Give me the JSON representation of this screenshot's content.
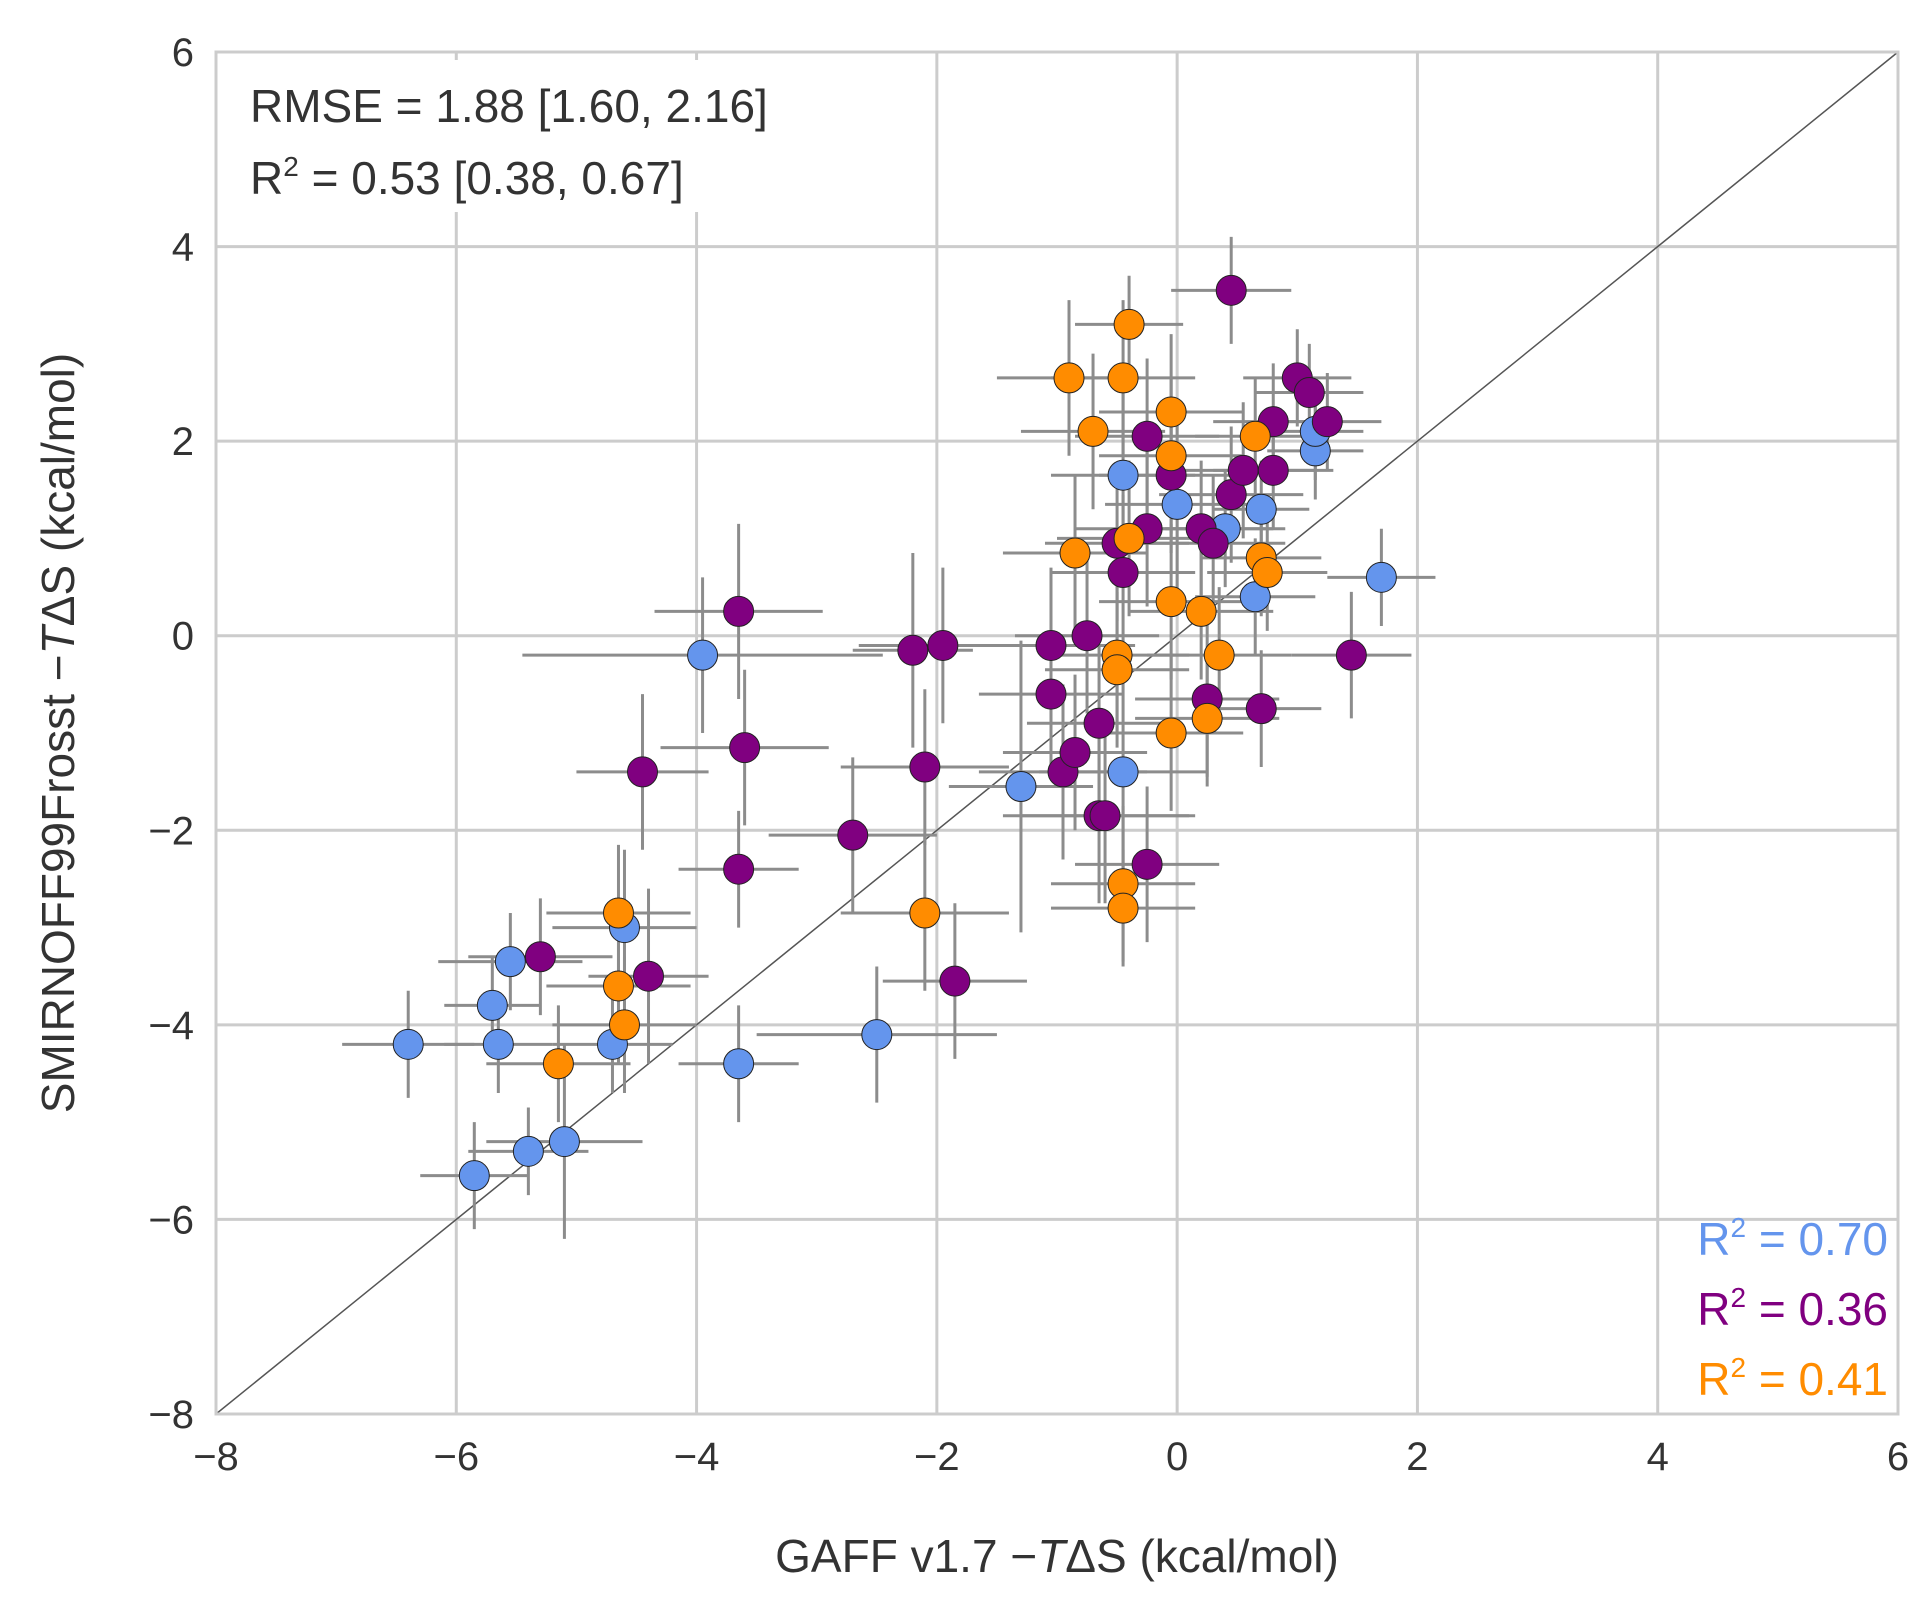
{
  "chart_data": {
    "type": "scatter",
    "xlabel_prefix": "GAFF v1.7 −",
    "xlabel_italic": "T",
    "xlabel_suffix": "ΔS (kcal/mol)",
    "ylabel_prefix": "SMIRNOFF99Frosst −",
    "ylabel_italic": "T",
    "ylabel_suffix": "ΔS (kcal/mol)",
    "xlim": [
      -8,
      6
    ],
    "ylim": [
      -8,
      6
    ],
    "x_ticks": [
      -8,
      -6,
      -4,
      -2,
      0,
      2,
      4,
      6
    ],
    "y_ticks": [
      -8,
      -6,
      -4,
      -2,
      0,
      2,
      4,
      6
    ],
    "x_tick_labels": [
      "−8",
      "−6",
      "−4",
      "−2",
      "0",
      "2",
      "4",
      "6"
    ],
    "y_tick_labels": [
      "−8",
      "−6",
      "−4",
      "−2",
      "0",
      "2",
      "4",
      "6"
    ],
    "grid": true,
    "identity_line": true,
    "stats": {
      "rmse": "RMSE = 1.88 [1.60, 2.16]",
      "r2_prefix": "R",
      "r2_sup": "2",
      "r2_suffix": " = 0.53 [0.38, 0.67]"
    },
    "series": [
      {
        "color": "#6495ed",
        "r2_prefix": "R",
        "r2_sup": "2",
        "r2_suffix": " = 0.70",
        "points": [
          {
            "x": -6.4,
            "y": -4.2,
            "xerr": 0.55,
            "yerr": 0.55
          },
          {
            "x": -5.7,
            "y": -3.8,
            "xerr": 0.4,
            "yerr": 0.5
          },
          {
            "x": -5.55,
            "y": -3.35,
            "xerr": 0.6,
            "yerr": 0.5
          },
          {
            "x": -5.65,
            "y": -4.2,
            "xerr": 0.45,
            "yerr": 0.5
          },
          {
            "x": -5.85,
            "y": -5.55,
            "xerr": 0.45,
            "yerr": 0.55
          },
          {
            "x": -5.4,
            "y": -5.3,
            "xerr": 0.5,
            "yerr": 0.45
          },
          {
            "x": -5.1,
            "y": -5.2,
            "xerr": 0.65,
            "yerr": 1.0
          },
          {
            "x": -4.7,
            "y": -4.2,
            "xerr": 0.5,
            "yerr": 0.5
          },
          {
            "x": -4.6,
            "y": -3.0,
            "xerr": 0.6,
            "yerr": 0.8
          },
          {
            "x": -3.95,
            "y": -0.2,
            "xerr": 1.5,
            "yerr": 0.8
          },
          {
            "x": -3.65,
            "y": -4.4,
            "xerr": 0.5,
            "yerr": 0.6
          },
          {
            "x": -2.5,
            "y": -4.1,
            "xerr": 1.0,
            "yerr": 0.7
          },
          {
            "x": -1.3,
            "y": -1.55,
            "xerr": 0.6,
            "yerr": 1.5
          },
          {
            "x": -0.45,
            "y": -1.4,
            "xerr": 0.7,
            "yerr": 1.2
          },
          {
            "x": -0.45,
            "y": 1.65,
            "xerr": 0.6,
            "yerr": 1.0
          },
          {
            "x": 0.0,
            "y": 1.35,
            "xerr": 0.6,
            "yerr": 1.0
          },
          {
            "x": 0.4,
            "y": 1.1,
            "xerr": 0.5,
            "yerr": 0.6
          },
          {
            "x": 0.65,
            "y": 0.4,
            "xerr": 0.5,
            "yerr": 0.6
          },
          {
            "x": 0.7,
            "y": 1.3,
            "xerr": 0.4,
            "yerr": 0.5
          },
          {
            "x": 1.15,
            "y": 1.9,
            "xerr": 0.4,
            "yerr": 0.5
          },
          {
            "x": 1.15,
            "y": 2.1,
            "xerr": 0.4,
            "yerr": 0.5
          },
          {
            "x": 1.7,
            "y": 0.6,
            "xerr": 0.45,
            "yerr": 0.5
          }
        ]
      },
      {
        "color": "#800080",
        "r2_prefix": "R",
        "r2_sup": "2",
        "r2_suffix": " = 0.36",
        "points": [
          {
            "x": -5.3,
            "y": -3.3,
            "xerr": 0.6,
            "yerr": 0.6
          },
          {
            "x": -4.45,
            "y": -1.4,
            "xerr": 0.55,
            "yerr": 0.8
          },
          {
            "x": -4.4,
            "y": -3.5,
            "xerr": 0.5,
            "yerr": 0.9
          },
          {
            "x": -3.65,
            "y": 0.25,
            "xerr": 0.7,
            "yerr": 0.9
          },
          {
            "x": -3.65,
            "y": -2.4,
            "xerr": 0.5,
            "yerr": 0.6
          },
          {
            "x": -3.6,
            "y": -1.15,
            "xerr": 0.7,
            "yerr": 0.8
          },
          {
            "x": -2.7,
            "y": -2.05,
            "xerr": 0.7,
            "yerr": 0.8
          },
          {
            "x": -2.2,
            "y": -0.15,
            "xerr": 0.5,
            "yerr": 1.0
          },
          {
            "x": -2.1,
            "y": -1.35,
            "xerr": 0.7,
            "yerr": 0.8
          },
          {
            "x": -1.95,
            "y": -0.1,
            "xerr": 0.7,
            "yerr": 0.8
          },
          {
            "x": -1.85,
            "y": -3.55,
            "xerr": 0.6,
            "yerr": 0.8
          },
          {
            "x": -1.05,
            "y": -0.1,
            "xerr": 0.7,
            "yerr": 0.8
          },
          {
            "x": -1.05,
            "y": -0.6,
            "xerr": 0.6,
            "yerr": 0.8
          },
          {
            "x": -0.95,
            "y": -1.4,
            "xerr": 0.7,
            "yerr": 0.9
          },
          {
            "x": -0.85,
            "y": -1.2,
            "xerr": 0.6,
            "yerr": 0.8
          },
          {
            "x": -0.75,
            "y": 0.0,
            "xerr": 0.6,
            "yerr": 0.8
          },
          {
            "x": -0.65,
            "y": -0.9,
            "xerr": 0.6,
            "yerr": 0.8
          },
          {
            "x": -0.65,
            "y": -1.85,
            "xerr": 0.8,
            "yerr": 0.9
          },
          {
            "x": -0.6,
            "y": -1.85,
            "xerr": 0.7,
            "yerr": 0.9
          },
          {
            "x": -0.5,
            "y": 0.95,
            "xerr": 0.6,
            "yerr": 0.8
          },
          {
            "x": -0.45,
            "y": 0.65,
            "xerr": 0.6,
            "yerr": 0.8
          },
          {
            "x": -0.25,
            "y": 2.05,
            "xerr": 0.6,
            "yerr": 0.8
          },
          {
            "x": -0.25,
            "y": 1.1,
            "xerr": 0.6,
            "yerr": 0.8
          },
          {
            "x": -0.25,
            "y": -2.35,
            "xerr": 0.6,
            "yerr": 0.8
          },
          {
            "x": -0.05,
            "y": 1.65,
            "xerr": 0.6,
            "yerr": 0.8
          },
          {
            "x": 0.2,
            "y": 1.1,
            "xerr": 0.6,
            "yerr": 0.7
          },
          {
            "x": 0.25,
            "y": -0.65,
            "xerr": 0.6,
            "yerr": 0.8
          },
          {
            "x": 0.3,
            "y": 0.95,
            "xerr": 0.6,
            "yerr": 0.7
          },
          {
            "x": 0.45,
            "y": 1.45,
            "xerr": 0.6,
            "yerr": 0.7
          },
          {
            "x": 0.45,
            "y": 3.55,
            "xerr": 0.5,
            "yerr": 0.55
          },
          {
            "x": 0.55,
            "y": 1.7,
            "xerr": 0.6,
            "yerr": 0.7
          },
          {
            "x": 0.7,
            "y": -0.75,
            "xerr": 0.5,
            "yerr": 0.6
          },
          {
            "x": 0.8,
            "y": 1.7,
            "xerr": 0.5,
            "yerr": 0.6
          },
          {
            "x": 0.8,
            "y": 2.2,
            "xerr": 0.5,
            "yerr": 0.6
          },
          {
            "x": 1.0,
            "y": 2.65,
            "xerr": 0.45,
            "yerr": 0.5
          },
          {
            "x": 1.1,
            "y": 2.5,
            "xerr": 0.45,
            "yerr": 0.5
          },
          {
            "x": 1.25,
            "y": 2.2,
            "xerr": 0.45,
            "yerr": 0.5
          },
          {
            "x": 1.45,
            "y": -0.2,
            "xerr": 0.5,
            "yerr": 0.65
          }
        ]
      },
      {
        "color": "#ff8c00",
        "r2_prefix": "R",
        "r2_sup": "2",
        "r2_suffix": " = 0.41",
        "points": [
          {
            "x": -5.15,
            "y": -4.4,
            "xerr": 0.6,
            "yerr": 0.6
          },
          {
            "x": -4.65,
            "y": -2.85,
            "xerr": 0.6,
            "yerr": 0.7
          },
          {
            "x": -4.65,
            "y": -3.6,
            "xerr": 0.6,
            "yerr": 0.8
          },
          {
            "x": -4.6,
            "y": -4.0,
            "xerr": 0.6,
            "yerr": 0.7
          },
          {
            "x": -2.1,
            "y": -2.85,
            "xerr": 0.7,
            "yerr": 0.8
          },
          {
            "x": -0.9,
            "y": 2.65,
            "xerr": 0.6,
            "yerr": 0.8
          },
          {
            "x": -0.85,
            "y": 0.85,
            "xerr": 0.6,
            "yerr": 0.8
          },
          {
            "x": -0.7,
            "y": 2.1,
            "xerr": 0.6,
            "yerr": 0.8
          },
          {
            "x": -0.45,
            "y": 2.65,
            "xerr": 0.6,
            "yerr": 0.8
          },
          {
            "x": -0.4,
            "y": 3.2,
            "xerr": 0.45,
            "yerr": 0.5
          },
          {
            "x": -0.4,
            "y": 1.0,
            "xerr": 0.6,
            "yerr": 0.8
          },
          {
            "x": -0.5,
            "y": -0.2,
            "xerr": 0.6,
            "yerr": 0.8
          },
          {
            "x": -0.5,
            "y": -0.35,
            "xerr": 0.6,
            "yerr": 0.8
          },
          {
            "x": -0.45,
            "y": -2.55,
            "xerr": 0.6,
            "yerr": 0.8
          },
          {
            "x": -0.45,
            "y": -2.8,
            "xerr": 0.6,
            "yerr": 0.6
          },
          {
            "x": -0.05,
            "y": 2.3,
            "xerr": 0.6,
            "yerr": 0.8
          },
          {
            "x": -0.05,
            "y": 1.85,
            "xerr": 0.6,
            "yerr": 0.8
          },
          {
            "x": -0.05,
            "y": 0.35,
            "xerr": 0.6,
            "yerr": 0.8
          },
          {
            "x": -0.05,
            "y": -1.0,
            "xerr": 0.6,
            "yerr": 0.8
          },
          {
            "x": 0.2,
            "y": 0.25,
            "xerr": 0.6,
            "yerr": 0.7
          },
          {
            "x": 0.25,
            "y": -0.85,
            "xerr": 0.6,
            "yerr": 0.7
          },
          {
            "x": 0.35,
            "y": -0.2,
            "xerr": 0.6,
            "yerr": 0.7
          },
          {
            "x": 0.65,
            "y": 2.05,
            "xerr": 0.5,
            "yerr": 0.6
          },
          {
            "x": 0.7,
            "y": 0.8,
            "xerr": 0.5,
            "yerr": 0.6
          },
          {
            "x": 0.75,
            "y": 0.65,
            "xerr": 0.5,
            "yerr": 0.6
          }
        ]
      }
    ]
  }
}
